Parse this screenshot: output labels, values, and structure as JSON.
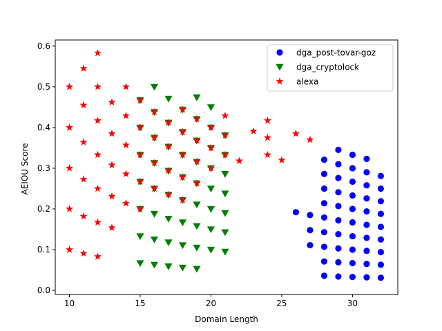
{
  "chart_data": {
    "type": "scatter",
    "title": "",
    "xlabel": "Domain Length",
    "ylabel": "AEIOU Score",
    "xlim": [
      9.0,
      33.2
    ],
    "ylim": [
      -0.01,
      0.615
    ],
    "xticks": [
      10,
      15,
      20,
      25,
      30
    ],
    "yticks": [
      0.0,
      0.1,
      0.2,
      0.3,
      0.4,
      0.5,
      0.6
    ],
    "grid": false,
    "legend_position": "top-right",
    "series": [
      {
        "name": "dga_post-tovar-goz",
        "marker": "circle",
        "color": "#0000ff",
        "points": [
          [
            26,
            0.192
          ],
          [
            27,
            0.185
          ],
          [
            27,
            0.148
          ],
          [
            27,
            0.111
          ],
          [
            28,
            0.321
          ],
          [
            28,
            0.286
          ],
          [
            28,
            0.25
          ],
          [
            28,
            0.214
          ],
          [
            28,
            0.179
          ],
          [
            28,
            0.143
          ],
          [
            28,
            0.107
          ],
          [
            28,
            0.071
          ],
          [
            28,
            0.036
          ],
          [
            29,
            0.345
          ],
          [
            29,
            0.31
          ],
          [
            29,
            0.276
          ],
          [
            29,
            0.241
          ],
          [
            29,
            0.207
          ],
          [
            29,
            0.172
          ],
          [
            29,
            0.138
          ],
          [
            29,
            0.103
          ],
          [
            29,
            0.069
          ],
          [
            29,
            0.034
          ],
          [
            30,
            0.333
          ],
          [
            30,
            0.3
          ],
          [
            30,
            0.267
          ],
          [
            30,
            0.233
          ],
          [
            30,
            0.2
          ],
          [
            30,
            0.167
          ],
          [
            30,
            0.133
          ],
          [
            30,
            0.1
          ],
          [
            30,
            0.067
          ],
          [
            30,
            0.033
          ],
          [
            31,
            0.323
          ],
          [
            31,
            0.29
          ],
          [
            31,
            0.258
          ],
          [
            31,
            0.226
          ],
          [
            31,
            0.194
          ],
          [
            31,
            0.161
          ],
          [
            31,
            0.129
          ],
          [
            31,
            0.097
          ],
          [
            31,
            0.065
          ],
          [
            31,
            0.032
          ],
          [
            32,
            0.281
          ],
          [
            32,
            0.25
          ],
          [
            32,
            0.219
          ],
          [
            32,
            0.188
          ],
          [
            32,
            0.156
          ],
          [
            32,
            0.125
          ],
          [
            32,
            0.094
          ],
          [
            32,
            0.063
          ],
          [
            32,
            0.031
          ]
        ]
      },
      {
        "name": "dga_cryptolock",
        "marker": "triangle-down",
        "color": "#008000",
        "points": [
          [
            15,
            0.467
          ],
          [
            15,
            0.4
          ],
          [
            15,
            0.333
          ],
          [
            15,
            0.267
          ],
          [
            15,
            0.2
          ],
          [
            15,
            0.133
          ],
          [
            15,
            0.067
          ],
          [
            16,
            0.5
          ],
          [
            16,
            0.438
          ],
          [
            16,
            0.375
          ],
          [
            16,
            0.313
          ],
          [
            16,
            0.25
          ],
          [
            16,
            0.188
          ],
          [
            16,
            0.125
          ],
          [
            16,
            0.063
          ],
          [
            17,
            0.471
          ],
          [
            17,
            0.412
          ],
          [
            17,
            0.353
          ],
          [
            17,
            0.294
          ],
          [
            17,
            0.235
          ],
          [
            17,
            0.176
          ],
          [
            17,
            0.118
          ],
          [
            17,
            0.059
          ],
          [
            18,
            0.444
          ],
          [
            18,
            0.389
          ],
          [
            18,
            0.333
          ],
          [
            18,
            0.278
          ],
          [
            18,
            0.222
          ],
          [
            18,
            0.167
          ],
          [
            18,
            0.111
          ],
          [
            18,
            0.056
          ],
          [
            19,
            0.474
          ],
          [
            19,
            0.421
          ],
          [
            19,
            0.368
          ],
          [
            19,
            0.316
          ],
          [
            19,
            0.263
          ],
          [
            19,
            0.211
          ],
          [
            19,
            0.158
          ],
          [
            19,
            0.105
          ],
          [
            19,
            0.053
          ],
          [
            20,
            0.45
          ],
          [
            20,
            0.4
          ],
          [
            20,
            0.35
          ],
          [
            20,
            0.3
          ],
          [
            20,
            0.25
          ],
          [
            20,
            0.2
          ],
          [
            20,
            0.15
          ],
          [
            20,
            0.1
          ],
          [
            21,
            0.381
          ],
          [
            21,
            0.333
          ],
          [
            21,
            0.286
          ],
          [
            21,
            0.238
          ],
          [
            21,
            0.19
          ],
          [
            21,
            0.143
          ],
          [
            21,
            0.095
          ]
        ]
      },
      {
        "name": "alexa",
        "marker": "star",
        "color": "#ff0000",
        "points": [
          [
            10,
            0.5
          ],
          [
            10,
            0.4
          ],
          [
            10,
            0.3
          ],
          [
            10,
            0.2
          ],
          [
            10,
            0.1
          ],
          [
            11,
            0.545
          ],
          [
            11,
            0.455
          ],
          [
            11,
            0.364
          ],
          [
            11,
            0.273
          ],
          [
            11,
            0.182
          ],
          [
            11,
            0.091
          ],
          [
            12,
            0.583
          ],
          [
            12,
            0.5
          ],
          [
            12,
            0.417
          ],
          [
            12,
            0.333
          ],
          [
            12,
            0.25
          ],
          [
            12,
            0.167
          ],
          [
            12,
            0.083
          ],
          [
            13,
            0.462
          ],
          [
            13,
            0.385
          ],
          [
            13,
            0.308
          ],
          [
            13,
            0.231
          ],
          [
            13,
            0.154
          ],
          [
            14,
            0.5
          ],
          [
            14,
            0.429
          ],
          [
            14,
            0.357
          ],
          [
            14,
            0.286
          ],
          [
            14,
            0.214
          ],
          [
            15,
            0.467
          ],
          [
            15,
            0.4
          ],
          [
            15,
            0.333
          ],
          [
            15,
            0.267
          ],
          [
            15,
            0.2
          ],
          [
            16,
            0.438
          ],
          [
            16,
            0.375
          ],
          [
            16,
            0.313
          ],
          [
            16,
            0.25
          ],
          [
            17,
            0.412
          ],
          [
            17,
            0.353
          ],
          [
            17,
            0.294
          ],
          [
            17,
            0.235
          ],
          [
            18,
            0.444
          ],
          [
            18,
            0.389
          ],
          [
            18,
            0.333
          ],
          [
            18,
            0.278
          ],
          [
            18,
            0.222
          ],
          [
            19,
            0.421
          ],
          [
            19,
            0.368
          ],
          [
            19,
            0.316
          ],
          [
            19,
            0.263
          ],
          [
            20,
            0.4
          ],
          [
            20,
            0.35
          ],
          [
            20,
            0.3
          ],
          [
            21,
            0.429
          ],
          [
            21,
            0.381
          ],
          [
            21,
            0.333
          ],
          [
            22,
            0.318
          ],
          [
            23,
            0.391
          ],
          [
            24,
            0.417
          ],
          [
            24,
            0.375
          ],
          [
            24,
            0.333
          ],
          [
            25,
            0.32
          ],
          [
            26,
            0.385
          ],
          [
            27,
            0.37
          ]
        ]
      }
    ]
  }
}
